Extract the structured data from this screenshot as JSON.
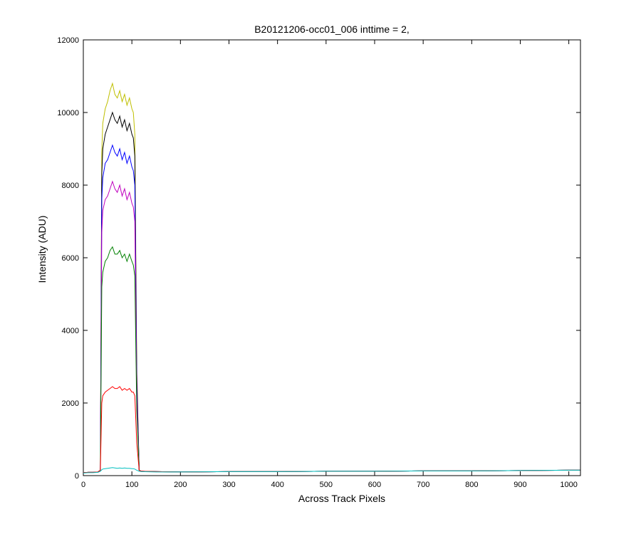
{
  "chart_data": {
    "type": "line",
    "title": "B20121206-occ01_006 inttime = 2,",
    "x_label": "Across Track Pixels",
    "y_label": "Intensity (ADU)",
    "x": [
      0,
      10,
      20,
      30,
      35,
      38,
      40,
      45,
      50,
      55,
      60,
      65,
      70,
      75,
      80,
      85,
      90,
      95,
      100,
      103,
      106,
      110,
      115,
      120,
      150,
      200,
      300,
      400,
      500,
      600,
      700,
      800,
      900,
      1000,
      1023
    ],
    "series": [
      {
        "color": "#bfbf00",
        "values": [
          80,
          90,
          90,
          100,
          150,
          8900,
          9700,
          10100,
          10300,
          10600,
          10800,
          10500,
          10400,
          10600,
          10300,
          10500,
          10200,
          10400,
          10100,
          10000,
          9400,
          3000,
          150,
          120,
          110,
          100,
          110,
          110,
          120,
          120,
          130,
          130,
          140,
          150,
          150
        ]
      },
      {
        "color": "#000000",
        "values": [
          80,
          90,
          90,
          100,
          150,
          8300,
          9000,
          9400,
          9600,
          9800,
          10000,
          9800,
          9700,
          9900,
          9600,
          9800,
          9500,
          9700,
          9400,
          9300,
          8800,
          2800,
          150,
          120,
          110,
          100,
          110,
          110,
          120,
          120,
          130,
          130,
          140,
          150,
          150
        ]
      },
      {
        "color": "#0000ff",
        "values": [
          80,
          90,
          90,
          100,
          150,
          7600,
          8200,
          8600,
          8700,
          8900,
          9100,
          8900,
          8800,
          9000,
          8700,
          8900,
          8600,
          8800,
          8500,
          8400,
          8000,
          2500,
          150,
          120,
          110,
          100,
          110,
          110,
          120,
          120,
          130,
          130,
          140,
          150,
          150
        ]
      },
      {
        "color": "#bf00bf",
        "values": [
          80,
          90,
          90,
          100,
          150,
          6700,
          7300,
          7600,
          7700,
          7900,
          8100,
          7900,
          7800,
          8000,
          7700,
          7900,
          7600,
          7800,
          7500,
          7400,
          7000,
          2200,
          150,
          120,
          110,
          100,
          110,
          110,
          120,
          120,
          130,
          130,
          140,
          150,
          150
        ]
      },
      {
        "color": "#008000",
        "values": [
          80,
          90,
          90,
          100,
          150,
          5200,
          5600,
          5900,
          6000,
          6200,
          6300,
          6100,
          6100,
          6200,
          6000,
          6100,
          5900,
          6100,
          5900,
          5800,
          5500,
          1800,
          150,
          120,
          110,
          100,
          110,
          110,
          120,
          120,
          130,
          130,
          140,
          150,
          150
        ]
      },
      {
        "color": "#ff0000",
        "values": [
          80,
          90,
          90,
          100,
          150,
          2000,
          2200,
          2300,
          2350,
          2400,
          2450,
          2400,
          2400,
          2450,
          2350,
          2400,
          2350,
          2400,
          2300,
          2300,
          2200,
          900,
          150,
          120,
          110,
          100,
          110,
          110,
          120,
          120,
          130,
          130,
          140,
          150,
          150
        ]
      },
      {
        "color": "#00bfbf",
        "values": [
          70,
          80,
          80,
          90,
          120,
          160,
          180,
          190,
          200,
          210,
          220,
          210,
          200,
          210,
          200,
          210,
          200,
          200,
          190,
          190,
          180,
          150,
          120,
          110,
          100,
          100,
          110,
          110,
          120,
          120,
          130,
          130,
          140,
          150,
          150
        ]
      }
    ],
    "xlim": [
      0,
      1024
    ],
    "xticks": [
      0,
      100,
      200,
      300,
      400,
      500,
      600,
      700,
      800,
      900,
      1000
    ],
    "ylim": [
      0,
      12000
    ],
    "yticks": [
      0,
      2000,
      4000,
      6000,
      8000,
      10000,
      12000
    ],
    "grid": false
  }
}
